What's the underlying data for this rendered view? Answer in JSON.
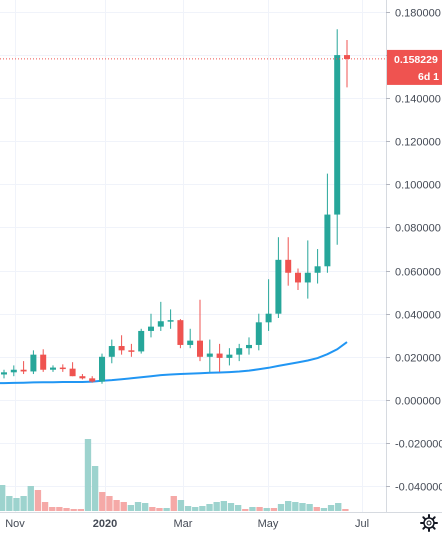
{
  "chart_data": {
    "type": "candlestick",
    "y_axis": {
      "ticks": [
        "0.180000",
        "0.160000",
        "0.140000",
        "0.120000",
        "0.100000",
        "0.080000",
        "0.060000",
        "0.040000",
        "0.020000",
        "0.000000",
        "-0.020000",
        "-0.040000"
      ],
      "range": [
        -0.048,
        0.184
      ]
    },
    "x_axis": {
      "labels": [
        {
          "text": "Nov",
          "bold": false
        },
        {
          "text": "2020",
          "bold": true
        },
        {
          "text": "Mar",
          "bold": false
        },
        {
          "text": "May",
          "bold": false
        },
        {
          "text": "Jul",
          "bold": false
        }
      ]
    },
    "last_price": {
      "value": "0.158229",
      "countdown": "6d 1",
      "color": "#ef5350"
    },
    "colors": {
      "up": "#26a69a",
      "down": "#ef5350",
      "ma": "#2196f3",
      "volume_up": "#9dd3ce",
      "volume_down": "#f5a9a7"
    },
    "candles": [
      {
        "o": 0.0118,
        "h": 0.014,
        "l": 0.01,
        "c": 0.0128
      },
      {
        "o": 0.0128,
        "h": 0.016,
        "l": 0.011,
        "c": 0.014
      },
      {
        "o": 0.014,
        "h": 0.018,
        "l": 0.012,
        "c": 0.0132
      },
      {
        "o": 0.0132,
        "h": 0.023,
        "l": 0.012,
        "c": 0.021
      },
      {
        "o": 0.021,
        "h": 0.0235,
        "l": 0.013,
        "c": 0.014
      },
      {
        "o": 0.014,
        "h": 0.016,
        "l": 0.013,
        "c": 0.015
      },
      {
        "o": 0.015,
        "h": 0.0165,
        "l": 0.013,
        "c": 0.0145
      },
      {
        "o": 0.0145,
        "h": 0.0175,
        "l": 0.011,
        "c": 0.011
      },
      {
        "o": 0.011,
        "h": 0.012,
        "l": 0.0095,
        "c": 0.01
      },
      {
        "o": 0.01,
        "h": 0.011,
        "l": 0.008,
        "c": 0.0085
      },
      {
        "o": 0.0085,
        "h": 0.0215,
        "l": 0.0075,
        "c": 0.02
      },
      {
        "o": 0.02,
        "h": 0.028,
        "l": 0.017,
        "c": 0.025
      },
      {
        "o": 0.025,
        "h": 0.03,
        "l": 0.021,
        "c": 0.023
      },
      {
        "o": 0.023,
        "h": 0.026,
        "l": 0.02,
        "c": 0.0225
      },
      {
        "o": 0.0225,
        "h": 0.033,
        "l": 0.0215,
        "c": 0.032
      },
      {
        "o": 0.032,
        "h": 0.04,
        "l": 0.029,
        "c": 0.034
      },
      {
        "o": 0.034,
        "h": 0.0455,
        "l": 0.032,
        "c": 0.0365
      },
      {
        "o": 0.0365,
        "h": 0.042,
        "l": 0.033,
        "c": 0.037
      },
      {
        "o": 0.037,
        "h": 0.0375,
        "l": 0.024,
        "c": 0.0255
      },
      {
        "o": 0.0255,
        "h": 0.033,
        "l": 0.024,
        "c": 0.0275
      },
      {
        "o": 0.0275,
        "h": 0.0465,
        "l": 0.018,
        "c": 0.02
      },
      {
        "o": 0.02,
        "h": 0.028,
        "l": 0.013,
        "c": 0.0215
      },
      {
        "o": 0.0215,
        "h": 0.026,
        "l": 0.013,
        "c": 0.0195
      },
      {
        "o": 0.0195,
        "h": 0.024,
        "l": 0.016,
        "c": 0.021
      },
      {
        "o": 0.021,
        "h": 0.026,
        "l": 0.018,
        "c": 0.024
      },
      {
        "o": 0.024,
        "h": 0.029,
        "l": 0.021,
        "c": 0.0255
      },
      {
        "o": 0.0255,
        "h": 0.04,
        "l": 0.023,
        "c": 0.036
      },
      {
        "o": 0.036,
        "h": 0.056,
        "l": 0.032,
        "c": 0.04
      },
      {
        "o": 0.04,
        "h": 0.0755,
        "l": 0.038,
        "c": 0.065
      },
      {
        "o": 0.065,
        "h": 0.0755,
        "l": 0.053,
        "c": 0.059
      },
      {
        "o": 0.059,
        "h": 0.061,
        "l": 0.051,
        "c": 0.0545
      },
      {
        "o": 0.0545,
        "h": 0.074,
        "l": 0.047,
        "c": 0.059
      },
      {
        "o": 0.059,
        "h": 0.07,
        "l": 0.054,
        "c": 0.062
      },
      {
        "o": 0.062,
        "h": 0.105,
        "l": 0.059,
        "c": 0.086
      },
      {
        "o": 0.086,
        "h": 0.172,
        "l": 0.072,
        "c": 0.16
      },
      {
        "o": 0.16,
        "h": 0.167,
        "l": 0.145,
        "c": 0.1582
      }
    ],
    "ma": [
      0.0078,
      0.0078,
      0.0079,
      0.008,
      0.0081,
      0.0082,
      0.0082,
      0.0083,
      0.0083,
      0.0083,
      0.0085,
      0.0089,
      0.0092,
      0.0096,
      0.01,
      0.0105,
      0.011,
      0.0115,
      0.0118,
      0.012,
      0.0122,
      0.0124,
      0.0126,
      0.0127,
      0.0129,
      0.0132,
      0.0136,
      0.0142,
      0.0149,
      0.0158,
      0.0166,
      0.0174,
      0.0183,
      0.0194,
      0.0212,
      0.0235,
      0.0268
    ],
    "volume": [
      {
        "v": 26,
        "up": true
      },
      {
        "v": 15,
        "up": true
      },
      {
        "v": 13,
        "up": true
      },
      {
        "v": 15,
        "up": true
      },
      {
        "v": 25,
        "up": true
      },
      {
        "v": 21,
        "up": false
      },
      {
        "v": 9,
        "up": false
      },
      {
        "v": 4,
        "up": false
      },
      {
        "v": 4,
        "up": false
      },
      {
        "v": 3,
        "up": false
      },
      {
        "v": 2,
        "up": false
      },
      {
        "v": 2,
        "up": false
      },
      {
        "v": 72,
        "up": true
      },
      {
        "v": 45,
        "up": true
      },
      {
        "v": 19,
        "up": false
      },
      {
        "v": 15,
        "up": false
      },
      {
        "v": 11,
        "up": false
      },
      {
        "v": 9,
        "up": false
      },
      {
        "v": 6,
        "up": true
      },
      {
        "v": 9,
        "up": true
      },
      {
        "v": 8,
        "up": true
      },
      {
        "v": 4,
        "up": false
      },
      {
        "v": 3,
        "up": false
      },
      {
        "v": 3,
        "up": true
      },
      {
        "v": 15,
        "up": false
      },
      {
        "v": 11,
        "up": true
      },
      {
        "v": 5,
        "up": true
      },
      {
        "v": 4,
        "up": true
      },
      {
        "v": 5,
        "up": true
      },
      {
        "v": 7,
        "up": true
      },
      {
        "v": 9,
        "up": true
      },
      {
        "v": 10,
        "up": true
      },
      {
        "v": 8,
        "up": true
      },
      {
        "v": 6,
        "up": true
      },
      {
        "v": 2,
        "up": false
      },
      {
        "v": 4,
        "up": true
      },
      {
        "v": 4,
        "up": false
      },
      {
        "v": 3,
        "up": true
      },
      {
        "v": 3,
        "up": false
      },
      {
        "v": 7,
        "up": true
      },
      {
        "v": 10,
        "up": true
      },
      {
        "v": 9,
        "up": true
      },
      {
        "v": 8,
        "up": true
      },
      {
        "v": 7,
        "up": true
      },
      {
        "v": 4,
        "up": false
      },
      {
        "v": 3,
        "up": true
      },
      {
        "v": 6,
        "up": true
      },
      {
        "v": 8,
        "up": true
      },
      {
        "v": 2,
        "up": false
      }
    ]
  },
  "icons": {
    "settings": "gear-icon"
  }
}
